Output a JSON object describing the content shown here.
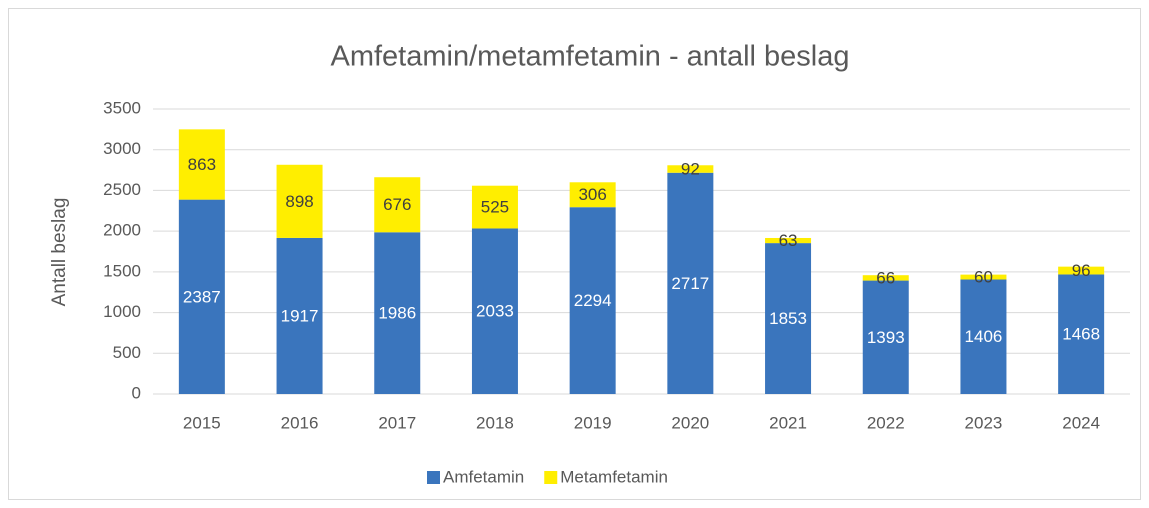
{
  "chart_data": {
    "type": "stacked_bar",
    "title": "Amfetamin/metamfetamin - antall beslag",
    "y_label": "Antall beslag",
    "categories": [
      "2015",
      "2016",
      "2017",
      "2018",
      "2019",
      "2020",
      "2021",
      "2022",
      "2023",
      "2024"
    ],
    "series": [
      {
        "name": "Amfetamin",
        "color": "#3a75bd",
        "label_color": "#ffffff",
        "values": [
          2387,
          1917,
          1986,
          2033,
          2294,
          2717,
          1853,
          1393,
          1406,
          1468
        ]
      },
      {
        "name": "Metamfetamin",
        "color": "#ffee00",
        "label_color": "#404040",
        "values": [
          863,
          898,
          676,
          525,
          306,
          92,
          63,
          66,
          60,
          96
        ]
      }
    ],
    "ylim": [
      0,
      3500
    ],
    "yticks": [
      0,
      500,
      1000,
      1500,
      2000,
      2500,
      3000,
      3500
    ],
    "grid": true,
    "legend": "bottom"
  }
}
